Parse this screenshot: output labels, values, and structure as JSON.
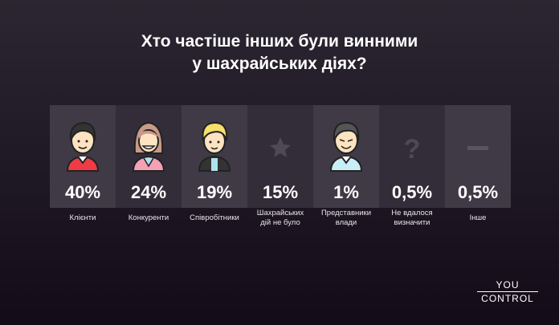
{
  "title_line1": "Хто частіше інших були винними",
  "title_line2": "у шахрайських діях?",
  "chart_data": {
    "type": "table",
    "title": "Хто частіше інших були винними у шахрайських діях?",
    "categories": [
      "Клієнти",
      "Конкуренти",
      "Співробітники",
      "Шахрайських дій не було",
      "Представники влади",
      "Не вдалося визначити",
      "Інше"
    ],
    "values": [
      40,
      24,
      19,
      15,
      1,
      0.5,
      0.5
    ],
    "value_labels": [
      "40%",
      "24%",
      "19%",
      "15%",
      "1%",
      "0,5%",
      "0,5%"
    ],
    "icons": [
      "man-red-shirt-icon",
      "woman-pink-jacket-icon",
      "blond-man-jacket-icon",
      "star-icon",
      "official-man-icon",
      "question-mark-icon",
      "dash-icon"
    ]
  },
  "labels": [
    [
      "Клієнти",
      ""
    ],
    [
      "Конкуренти",
      ""
    ],
    [
      "Співробітники",
      ""
    ],
    [
      "Шахрайських",
      "дій не було"
    ],
    [
      "Представники",
      "влади"
    ],
    [
      "Не вдалося",
      "визначити"
    ],
    [
      "Інше",
      ""
    ]
  ],
  "colors": {
    "panel_light": "#403a46",
    "panel_dark": "#332d39",
    "red_shirt": "#ee3b45",
    "pink_jacket": "#f4a0b5",
    "skin": "#fde3c0"
  },
  "logo": {
    "line1": "YOU",
    "line2": "CONTROL"
  }
}
